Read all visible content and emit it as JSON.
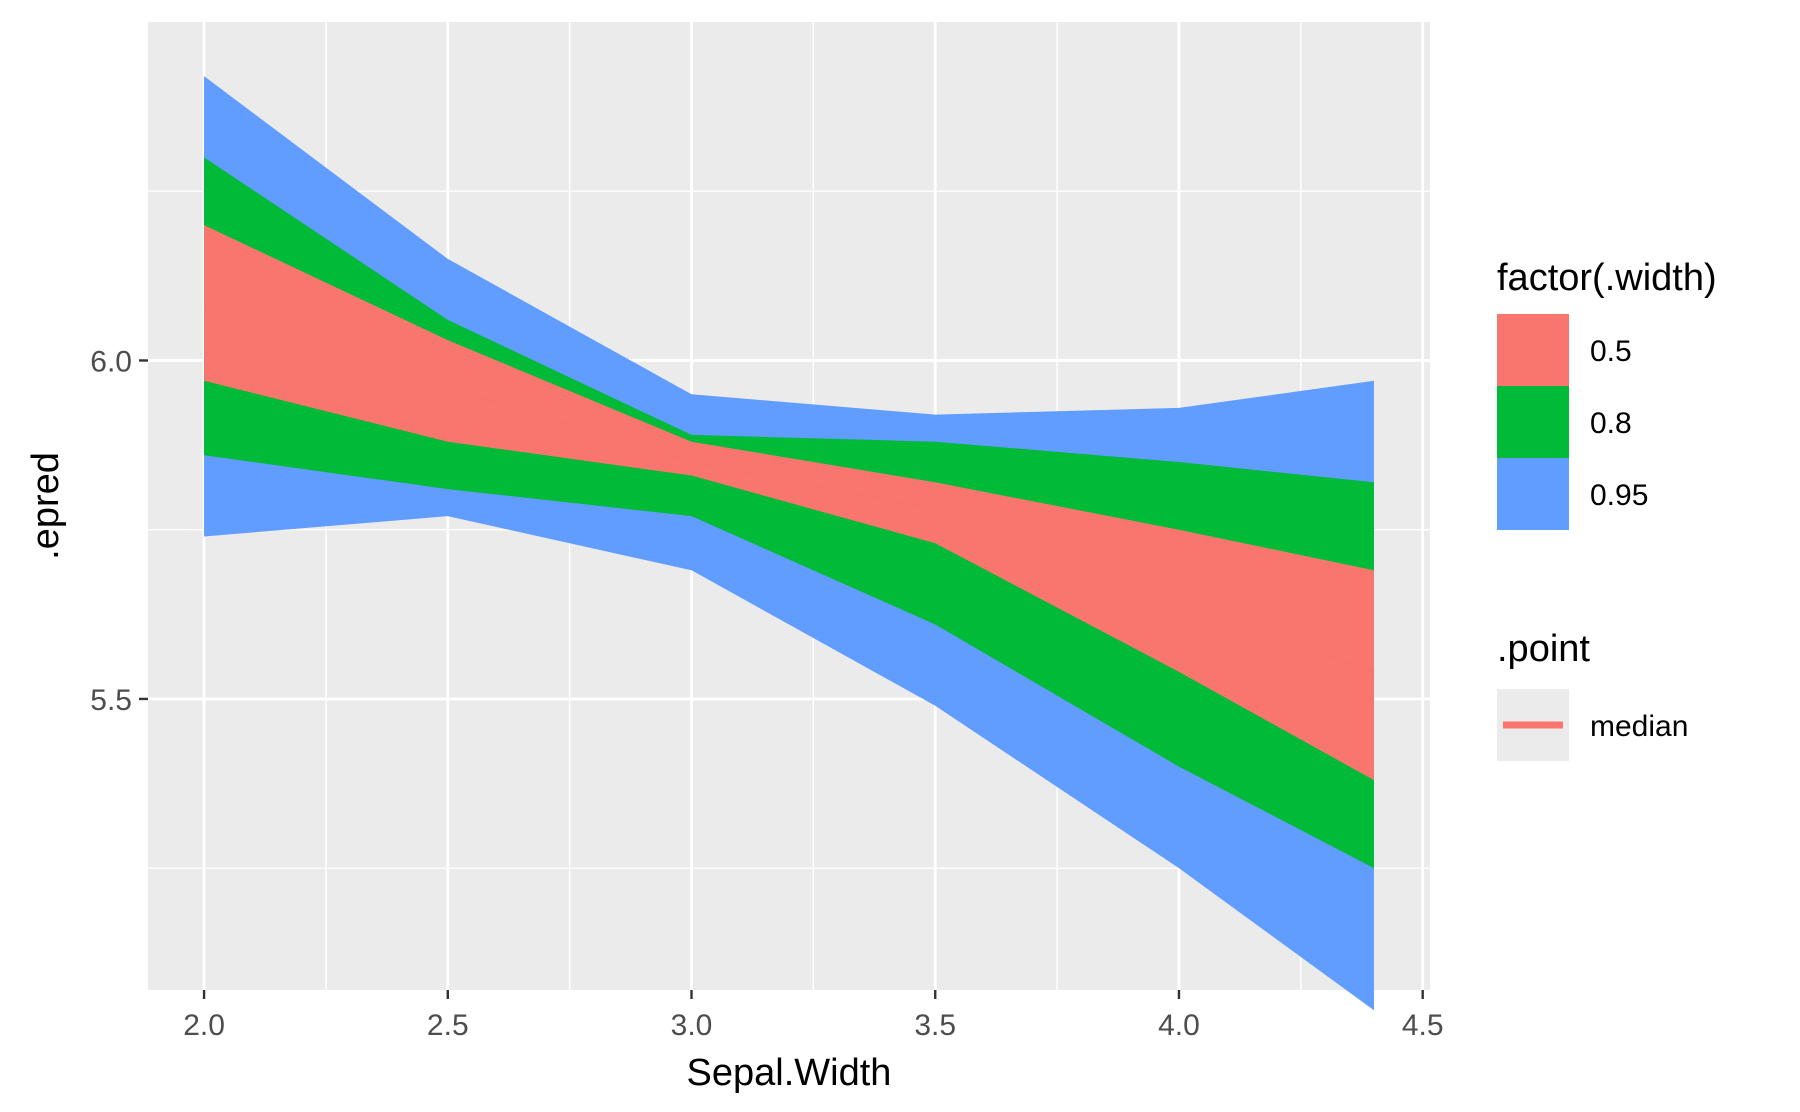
{
  "chart_data": {
    "type": "area",
    "xlabel": "Sepal.Width",
    "ylabel": ".epred",
    "xlim": [
      1.885,
      4.515
    ],
    "ylim": [
      5.07,
      6.5
    ],
    "x_ticks": [
      "2.0",
      "2.5",
      "3.0",
      "3.5",
      "4.0",
      "4.5"
    ],
    "y_ticks": [
      "5.5",
      "6.0"
    ],
    "grid": true,
    "legend_placement": "right",
    "x": [
      2.0,
      2.5,
      3.0,
      3.5,
      4.0,
      4.4
    ],
    "series": [
      {
        "name": "0.95",
        "color": "#619CFF",
        "lower": [
          5.74,
          5.77,
          5.69,
          5.49,
          5.25,
          5.04
        ],
        "upper": [
          6.42,
          6.15,
          5.95,
          5.92,
          5.93,
          5.97
        ]
      },
      {
        "name": "0.8",
        "color": "#00BA38",
        "lower": [
          5.86,
          5.81,
          5.77,
          5.61,
          5.4,
          5.25
        ],
        "upper": [
          6.3,
          6.06,
          5.89,
          5.88,
          5.85,
          5.82
        ]
      },
      {
        "name": "0.5",
        "color": "#F8766D",
        "lower": [
          5.97,
          5.88,
          5.83,
          5.73,
          5.54,
          5.38
        ],
        "upper": [
          6.2,
          6.03,
          5.88,
          5.82,
          5.75,
          5.69
        ]
      }
    ],
    "median": [
      6.08,
      5.96,
      5.85,
      5.78,
      5.64,
      5.54
    ]
  },
  "legend": {
    "fill_title": "factor(.width)",
    "fill_items": [
      {
        "label": "0.5",
        "color": "#F8766D"
      },
      {
        "label": "0.8",
        "color": "#00BA38"
      },
      {
        "label": "0.95",
        "color": "#619CFF"
      }
    ],
    "line_title": ".point",
    "line_items": [
      {
        "label": "median",
        "color": "#F8766D"
      }
    ]
  },
  "colors": {
    "panel": "#EBEBEB",
    "grid": "#FFFFFF"
  }
}
